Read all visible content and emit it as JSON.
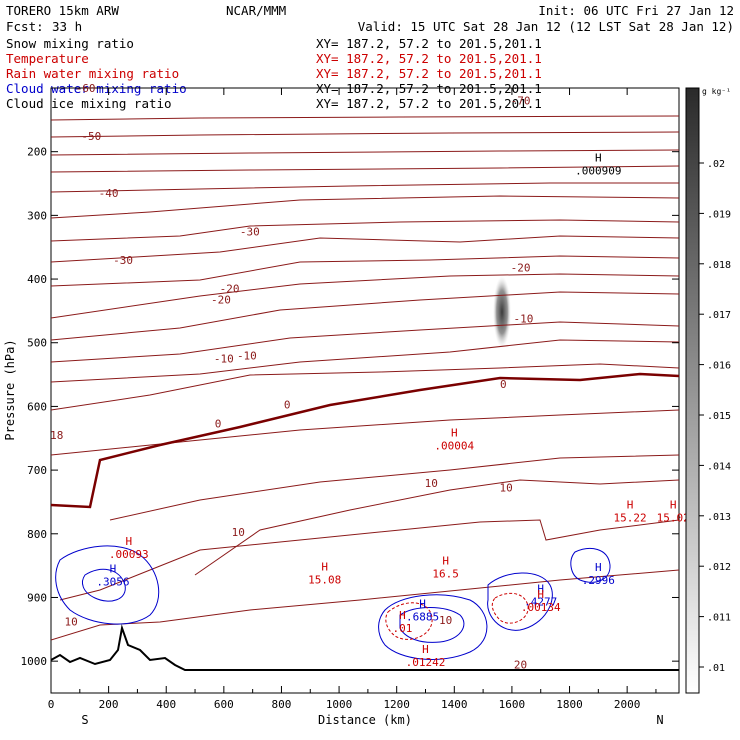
{
  "header": {
    "model": "TORERO  15km ARW",
    "center": "NCAR/MMM",
    "init": "Init: 06 UTC Fri 27 Jan 12",
    "fcst_label": "Fcst:",
    "fcst_value": "33 h",
    "valid": "Valid: 15 UTC Sat 28 Jan 12 (12 LST Sat 28 Jan 12)"
  },
  "fields": [
    {
      "name": "Snow mixing ratio",
      "xy": "XY= 187.2, 57.2 to 201.5,201.1",
      "color": "#000000",
      "xy_color": "#000000"
    },
    {
      "name": "Temperature",
      "xy": "XY= 187.2, 57.2 to 201.5,201.1",
      "color": "#cc0000",
      "xy_color": "#cc0000"
    },
    {
      "name": "Rain water mixing ratio",
      "xy": "XY= 187.2, 57.2 to 201.5,201.1",
      "color": "#cc0000",
      "xy_color": "#cc0000"
    },
    {
      "name": "Cloud water mixing ratio",
      "xy": "XY= 187.2, 57.2 to 201.5,201.1",
      "color": "#0000cc",
      "xy_color": "#000000"
    },
    {
      "name": "Cloud ice mixing ratio",
      "xy": "XY= 187.2, 57.2 to 201.5,201.1",
      "color": "#000000",
      "xy_color": "#000000"
    }
  ],
  "colors": {
    "temperature": "#8b1a1a",
    "freezing": "#7a0000",
    "rain": "#cc0000",
    "cloud_water": "#0000cc",
    "terrain": "#000000",
    "snow_shade": "#404040"
  },
  "chart_data": {
    "type": "contour",
    "xlabel": "Distance (km)",
    "ylabel": "Pressure (hPa)",
    "xlim": [
      0,
      2180
    ],
    "ylim": [
      1050,
      100
    ],
    "x_ticks": [
      "0",
      "200",
      "400",
      "600",
      "800",
      "1000",
      "1200",
      "1400",
      "1600",
      "1800",
      "2000"
    ],
    "y_ticks": [
      "200",
      "300",
      "400",
      "500",
      "600",
      "700",
      "800",
      "900",
      "1000"
    ],
    "left_end": "S",
    "right_end": "N",
    "colorbar": {
      "unit": "g kg⁻¹",
      "ticks": [
        ".02",
        ".019",
        ".018",
        ".017",
        ".016",
        ".015",
        ".014",
        ".013",
        ".012",
        ".011",
        ".01"
      ]
    },
    "temperature_contour_labels": [
      {
        "x": 120,
        "p": 100,
        "label": "-60"
      },
      {
        "x": 1630,
        "p": 120,
        "label": "-70"
      },
      {
        "x": 140,
        "p": 175,
        "label": "-50"
      },
      {
        "x": 200,
        "p": 265,
        "label": "-40"
      },
      {
        "x": 690,
        "p": 325,
        "label": "-30"
      },
      {
        "x": 250,
        "p": 370,
        "label": "-30"
      },
      {
        "x": 620,
        "p": 415,
        "label": "-20"
      },
      {
        "x": 1630,
        "p": 382,
        "label": "-20"
      },
      {
        "x": 590,
        "p": 432,
        "label": "-20"
      },
      {
        "x": 1640,
        "p": 462,
        "label": "-10"
      },
      {
        "x": 680,
        "p": 520,
        "label": "-10"
      },
      {
        "x": 600,
        "p": 525,
        "label": "-10"
      },
      {
        "x": 1570,
        "p": 565,
        "label": "0"
      },
      {
        "x": 820,
        "p": 597,
        "label": "0"
      },
      {
        "x": 580,
        "p": 627,
        "label": "0"
      },
      {
        "x": 1320,
        "p": 720,
        "label": "10"
      },
      {
        "x": 1580,
        "p": 727,
        "label": "10"
      },
      {
        "x": 650,
        "p": 797,
        "label": "10"
      },
      {
        "x": 20,
        "p": 645,
        "label": "18"
      },
      {
        "x": 70,
        "p": 938,
        "label": "10"
      },
      {
        "x": 1370,
        "p": 935,
        "label": "10"
      },
      {
        "x": 1630,
        "p": 1005,
        "label": "20"
      }
    ],
    "temperature_maxima": [
      {
        "x": 1400,
        "p": 657,
        "value": ".00004",
        "color": "red"
      },
      {
        "x": 2010,
        "p": 770,
        "value": "15.22",
        "color": "red"
      },
      {
        "x": 2160,
        "p": 770,
        "value": "15.02",
        "color": "red"
      },
      {
        "x": 950,
        "p": 867,
        "value": "15.08",
        "color": "red"
      },
      {
        "x": 1370,
        "p": 858,
        "value": "16.5",
        "color": "red"
      }
    ],
    "cloud_water_maxima": [
      {
        "x": 215,
        "p": 870,
        "value": ".3056",
        "color": "blue"
      },
      {
        "x": 1290,
        "p": 925,
        "value": ".6885",
        "color": "blue"
      },
      {
        "x": 1700,
        "p": 902,
        "value": ".4277",
        "color": "blue"
      },
      {
        "x": 1900,
        "p": 868,
        "value": ".2996",
        "color": "blue"
      }
    ],
    "snow_maxima": [
      {
        "x": 1900,
        "p": 225,
        "value": ".000909",
        "color": "black"
      }
    ],
    "rain_maxima": [
      {
        "x": 270,
        "p": 827,
        "value": ".00093",
        "color": "red"
      },
      {
        "x": 1220,
        "p": 943,
        "value": ".01",
        "color": "red"
      },
      {
        "x": 1700,
        "p": 910,
        "value": ".00134",
        "color": "red"
      },
      {
        "x": 1300,
        "p": 997,
        "value": ".01242",
        "color": "red"
      }
    ],
    "max_marker": "H"
  }
}
